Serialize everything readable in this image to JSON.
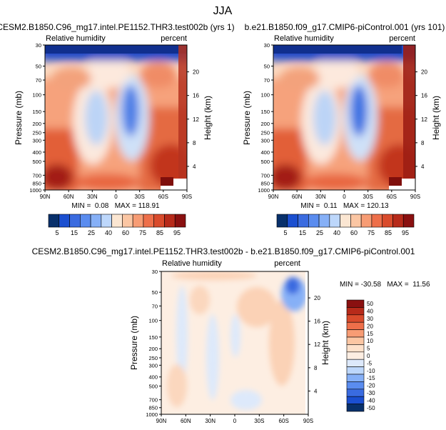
{
  "page": {
    "title": "JJA"
  },
  "chart_data": [
    {
      "type": "heatmap",
      "title": "CESM2.B1850.C96_mg17.intel.PE1152.THR3.test002b (yrs 1)",
      "subtitle_left": "Relative humidity",
      "subtitle_right": "percent",
      "ylabel": "Pressure (mb)",
      "ylabel_right": "Height (km)",
      "x_ticks": [
        "90N",
        "60N",
        "30N",
        "0",
        "30S",
        "60S",
        "90S"
      ],
      "y_ticks": [
        "30",
        "50",
        "70",
        "100",
        "150",
        "200",
        "250",
        "300",
        "400",
        "500",
        "700",
        "850",
        "1000"
      ],
      "y_ticks_right": [
        "20",
        "16",
        "12",
        "8",
        "4"
      ],
      "xlim": [
        90,
        -90
      ],
      "ylim": [
        1000,
        30
      ],
      "stats": "MIN =  0.08   MAX = 118.91",
      "min": 0.08,
      "max": 118.91
    },
    {
      "type": "heatmap",
      "title": "b.e21.B1850.f09_g17.CMIP6-piControl.001 (yrs 101)",
      "subtitle_left": "Relative humidity",
      "subtitle_right": "percent",
      "ylabel": "Pressure (mb)",
      "ylabel_right": "Height (km)",
      "x_ticks": [
        "90N",
        "60N",
        "30N",
        "0",
        "30S",
        "60S",
        "90S"
      ],
      "y_ticks": [
        "30",
        "50",
        "70",
        "100",
        "150",
        "200",
        "250",
        "300",
        "400",
        "500",
        "700",
        "850",
        "1000"
      ],
      "y_ticks_right": [
        "20",
        "16",
        "12",
        "8",
        "4"
      ],
      "xlim": [
        90,
        -90
      ],
      "ylim": [
        1000,
        30
      ],
      "stats": "MIN =  0.11   MAX = 120.13",
      "min": 0.11,
      "max": 120.13
    },
    {
      "type": "heatmap",
      "title": "CESM2.B1850.C96_mg17.intel.PE1152.THR3.test002b - b.e21.B1850.f09_g17.CMIP6-piControl.001",
      "subtitle_left": "Relative humidity",
      "subtitle_right": "percent",
      "ylabel": "Pressure (mb)",
      "ylabel_right": "Height (km)",
      "x_ticks": [
        "90N",
        "60N",
        "30N",
        "0",
        "30S",
        "60S",
        "90S"
      ],
      "y_ticks": [
        "30",
        "50",
        "70",
        "100",
        "150",
        "200",
        "250",
        "300",
        "400",
        "500",
        "700",
        "850",
        "1000"
      ],
      "y_ticks_right": [
        "20",
        "16",
        "12",
        "8",
        "4"
      ],
      "xlim": [
        90,
        -90
      ],
      "ylim": [
        1000,
        30
      ],
      "stats": "MIN = -30.58   MAX =  11.56",
      "min": -30.58,
      "max": 11.56
    }
  ],
  "colorbar_top": {
    "labels": [
      "5",
      "15",
      "25",
      "40",
      "60",
      "75",
      "85",
      "95"
    ],
    "colors": [
      "#08306b",
      "#1b4fd0",
      "#3a6be0",
      "#5a8cef",
      "#86b0f7",
      "#bdd7fb",
      "#fbe6d2",
      "#fbc6a3",
      "#f79c74",
      "#ee6f4a",
      "#d94b2c",
      "#b72a1a",
      "#8a1010"
    ]
  },
  "colorbar_diff": {
    "labels": [
      "50",
      "40",
      "30",
      "20",
      "15",
      "10",
      "5",
      "0",
      "-5",
      "-10",
      "-15",
      "-20",
      "-30",
      "-40",
      "-50"
    ],
    "colors": [
      "#8a1010",
      "#b72a1a",
      "#d94b2c",
      "#ee6f4a",
      "#f79c74",
      "#fbc6a3",
      "#fde1cb",
      "#fdeee2",
      "#dde9fb",
      "#bdd7fb",
      "#86b0f7",
      "#5a8cef",
      "#3a6be0",
      "#1b4fd0",
      "#08306b"
    ]
  }
}
